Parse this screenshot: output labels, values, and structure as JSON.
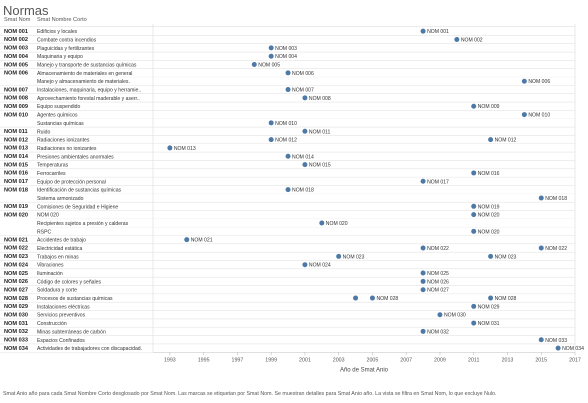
{
  "page_title": "Normas",
  "caption": "Smat Anio año para cada Smat Nombre Corto desglosado por Smat Nom.  Las marcas se etiquetan por Smat Nom.  Se muestran detalles para Smat Anio año. La vista se filtra en Smat Nom, lo que excluye Nulo.",
  "chart_data": {
    "type": "scatter",
    "title": "Normas",
    "xlabel": "Año de Smat Anio",
    "col_headers": [
      "Smat Nom",
      "Smat Nombre Corto"
    ],
    "x_ticks": [
      1993,
      1995,
      1997,
      1999,
      2001,
      2003,
      2005,
      2007,
      2009,
      2011,
      2013,
      2015,
      2017
    ],
    "xlim": [
      1992,
      2017
    ],
    "color": "#4e79a7",
    "groups": [
      {
        "nom": "NOM 001",
        "items": [
          {
            "name": "Edificios y locales",
            "points": [
              {
                "year": 2008,
                "label": "NOM 001"
              }
            ]
          }
        ]
      },
      {
        "nom": "NOM 002",
        "items": [
          {
            "name": "Combate contra incendios",
            "points": [
              {
                "year": 2010,
                "label": "NOM 002"
              }
            ]
          }
        ]
      },
      {
        "nom": "NOM 003",
        "items": [
          {
            "name": "Plaguicidas y fertilizantes",
            "points": [
              {
                "year": 1999,
                "label": "NOM 003"
              }
            ]
          }
        ]
      },
      {
        "nom": "NOM 004",
        "items": [
          {
            "name": "Maquinaria y equipo",
            "points": [
              {
                "year": 1999,
                "label": "NOM 004"
              }
            ]
          }
        ]
      },
      {
        "nom": "NOM 005",
        "items": [
          {
            "name": "Manejo y transporte de sustancias químicas",
            "points": [
              {
                "year": 1998,
                "label": "NOM 005"
              }
            ]
          }
        ]
      },
      {
        "nom": "NOM 006",
        "items": [
          {
            "name": "Almacenamiento de materiales en general",
            "points": [
              {
                "year": 2000,
                "label": "NOM 006"
              }
            ]
          },
          {
            "name": "Manejo y almacenamiento de materiales.",
            "points": [
              {
                "year": 2014,
                "label": "NOM 006"
              }
            ]
          }
        ]
      },
      {
        "nom": "NOM 007",
        "items": [
          {
            "name": "Instalaciones, maquinaria, equipo y herramie..",
            "points": [
              {
                "year": 2000,
                "label": "NOM 007"
              }
            ]
          }
        ]
      },
      {
        "nom": "NOM 008",
        "items": [
          {
            "name": "Aprovechamiento forestal maderable y aserr..",
            "points": [
              {
                "year": 2001,
                "label": "NOM 008"
              }
            ]
          }
        ]
      },
      {
        "nom": "NOM 009",
        "items": [
          {
            "name": "Equipo suspendido",
            "points": [
              {
                "year": 2011,
                "label": "NOM 009"
              }
            ]
          }
        ]
      },
      {
        "nom": "NOM 010",
        "items": [
          {
            "name": "Agentes químicos",
            "points": [
              {
                "year": 2014,
                "label": "NOM 010"
              }
            ]
          },
          {
            "name": "Sustancias químicas",
            "points": [
              {
                "year": 1999,
                "label": "NOM 010"
              }
            ]
          }
        ]
      },
      {
        "nom": "NOM 011",
        "items": [
          {
            "name": "Ruido",
            "points": [
              {
                "year": 2001,
                "label": "NOM 011"
              }
            ]
          }
        ]
      },
      {
        "nom": "NOM 012",
        "items": [
          {
            "name": "Radiaciones ionizantes",
            "points": [
              {
                "year": 1999,
                "label": "NOM 012"
              },
              {
                "year": 2012,
                "label": "NOM 012"
              }
            ]
          }
        ]
      },
      {
        "nom": "NOM 013",
        "items": [
          {
            "name": "Radiaciones no ionizantes",
            "points": [
              {
                "year": 1993,
                "label": "NOM 013"
              }
            ]
          }
        ]
      },
      {
        "nom": "NOM 014",
        "items": [
          {
            "name": "Presiones ambientales anormales",
            "points": [
              {
                "year": 2000,
                "label": "NOM 014"
              }
            ]
          }
        ]
      },
      {
        "nom": "NOM 015",
        "items": [
          {
            "name": "Temperaturas",
            "points": [
              {
                "year": 2001,
                "label": "NOM 015"
              }
            ]
          }
        ]
      },
      {
        "nom": "NOM 016",
        "items": [
          {
            "name": "Ferrocarriles",
            "points": [
              {
                "year": 2011,
                "label": "NOM 016"
              }
            ]
          }
        ]
      },
      {
        "nom": "NOM 017",
        "items": [
          {
            "name": "Equipo de protección personal",
            "points": [
              {
                "year": 2008,
                "label": "NOM 017"
              }
            ]
          }
        ]
      },
      {
        "nom": "NOM 018",
        "items": [
          {
            "name": "Identificación de sustancias químicas",
            "points": [
              {
                "year": 2000,
                "label": "NOM 018"
              }
            ]
          },
          {
            "name": "Sistema armonizado",
            "points": [
              {
                "year": 2015,
                "label": "NOM 018"
              }
            ]
          }
        ]
      },
      {
        "nom": "NOM 019",
        "items": [
          {
            "name": "Comisiones de Seguridad e Higiene",
            "points": [
              {
                "year": 2011,
                "label": "NOM 019"
              }
            ]
          }
        ]
      },
      {
        "nom": "NOM 020",
        "items": [
          {
            "name": "NOM 020",
            "points": [
              {
                "year": 2011,
                "label": "NOM 020"
              }
            ]
          },
          {
            "name": "Recipientes sujetos a presión y calderas",
            "points": [
              {
                "year": 2002,
                "label": "NOM 020"
              }
            ]
          },
          {
            "name": "RSPC",
            "points": [
              {
                "year": 2011,
                "label": "NOM 020"
              }
            ]
          }
        ]
      },
      {
        "nom": "NOM 021",
        "items": [
          {
            "name": "Accidentes de trabajo",
            "points": [
              {
                "year": 1994,
                "label": "NOM 021"
              }
            ]
          }
        ]
      },
      {
        "nom": "NOM 022",
        "items": [
          {
            "name": "Electricidad estática",
            "points": [
              {
                "year": 2008,
                "label": "NOM 022"
              },
              {
                "year": 2015,
                "label": "NOM 022"
              }
            ]
          }
        ]
      },
      {
        "nom": "NOM 023",
        "items": [
          {
            "name": "Trabajos en minas",
            "points": [
              {
                "year": 2003,
                "label": "NOM 023"
              },
              {
                "year": 2012,
                "label": "NOM 023"
              }
            ]
          }
        ]
      },
      {
        "nom": "NOM 024",
        "items": [
          {
            "name": "Vibraciones",
            "points": [
              {
                "year": 2001,
                "label": "NOM 024"
              }
            ]
          }
        ]
      },
      {
        "nom": "NOM 025",
        "items": [
          {
            "name": "Iluminación",
            "points": [
              {
                "year": 2008,
                "label": "NOM 025"
              }
            ]
          }
        ]
      },
      {
        "nom": "NOM 026",
        "items": [
          {
            "name": "Código de colores y señales",
            "points": [
              {
                "year": 2008,
                "label": "NOM 026"
              }
            ]
          }
        ]
      },
      {
        "nom": "NOM 027",
        "items": [
          {
            "name": "Soldadura y corte",
            "points": [
              {
                "year": 2008,
                "label": "NOM 027"
              }
            ]
          }
        ]
      },
      {
        "nom": "NOM 028",
        "items": [
          {
            "name": "Procesos de sustancias químicas",
            "points": [
              {
                "year": 2004,
                "label": ""
              },
              {
                "year": 2005,
                "label": "NOM 028"
              },
              {
                "year": 2012,
                "label": "NOM 028"
              }
            ]
          }
        ]
      },
      {
        "nom": "NOM 029",
        "items": [
          {
            "name": "Instalaciones eléctricas",
            "points": [
              {
                "year": 2011,
                "label": "NOM 029"
              }
            ]
          }
        ]
      },
      {
        "nom": "NOM 030",
        "items": [
          {
            "name": "Servicios preventivos",
            "points": [
              {
                "year": 2009,
                "label": "NOM 030"
              }
            ]
          }
        ]
      },
      {
        "nom": "NOM 031",
        "items": [
          {
            "name": "Construcción",
            "points": [
              {
                "year": 2011,
                "label": "NOM 031"
              }
            ]
          }
        ]
      },
      {
        "nom": "NOM 032",
        "items": [
          {
            "name": "Minas subterráneas de carbón",
            "points": [
              {
                "year": 2008,
                "label": "NOM 032"
              }
            ]
          }
        ]
      },
      {
        "nom": "NOM 033",
        "items": [
          {
            "name": "Espacios Confinados",
            "points": [
              {
                "year": 2015,
                "label": "NOM 033"
              }
            ]
          }
        ]
      },
      {
        "nom": "NOM 034",
        "items": [
          {
            "name": "Actividades de trabajadores con discapacidad.",
            "points": [
              {
                "year": 2016,
                "label": "NOM 034"
              }
            ]
          }
        ]
      }
    ]
  }
}
